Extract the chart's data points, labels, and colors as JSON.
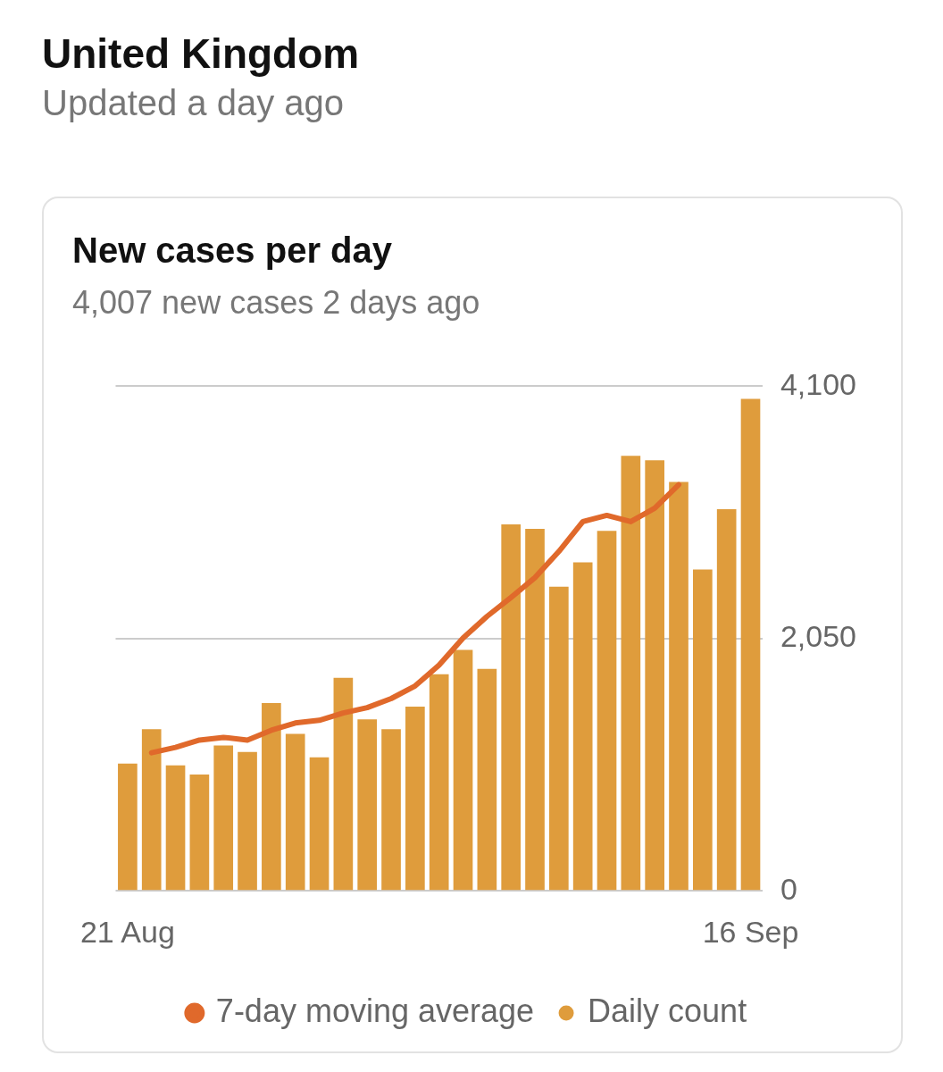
{
  "chart_data": {
    "type": "bar",
    "title": "New cases per day",
    "subtitle": "4,007 new cases 2 days ago",
    "annotations": [
      "United Kingdom",
      "Updated a day ago"
    ],
    "categories": [
      "21 Aug",
      null,
      null,
      null,
      null,
      null,
      null,
      null,
      null,
      null,
      null,
      null,
      null,
      null,
      null,
      null,
      null,
      null,
      null,
      null,
      null,
      null,
      null,
      null,
      null,
      null,
      "16 Sep"
    ],
    "series": [
      {
        "name": "7-day moving average",
        "type": "line",
        "color": "#e0692b",
        "values": [
          null,
          1122,
          1166,
          1225,
          1247,
          1225,
          1305,
          1364,
          1386,
          1445,
          1489,
          1562,
          1665,
          1834,
          2054,
          2230,
          2384,
          2545,
          2758,
          3000,
          3051,
          3000,
          3110,
          3300,
          null,
          null,
          null
        ]
      },
      {
        "name": "Daily count",
        "color": "#df9c3c",
        "values": [
          1034,
          1313,
          1019,
          946,
          1181,
          1129,
          1525,
          1276,
          1085,
          1731,
          1393,
          1313,
          1496,
          1760,
          1958,
          1804,
          2978,
          2941,
          2472,
          2670,
          2926,
          3535,
          3498,
          3322,
          2611,
          3102,
          3997
        ]
      }
    ],
    "ylim": [
      0,
      4100
    ],
    "yticks": [
      0,
      {
        "value": 2050,
        "label": "2,050"
      },
      {
        "value": 4100,
        "label": "4,100"
      }
    ],
    "grid": "y",
    "legend": "bottom",
    "marker": "none"
  }
}
